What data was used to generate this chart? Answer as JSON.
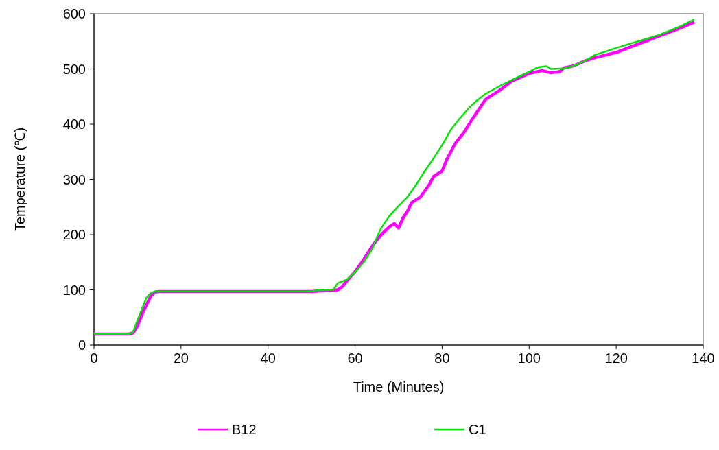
{
  "chart_data": {
    "type": "line",
    "xlabel": "Time (Minutes)",
    "ylabel": "Temperature (℃)",
    "xlim": [
      0,
      140
    ],
    "ylim": [
      0,
      600
    ],
    "xticks": [
      0,
      20,
      40,
      60,
      80,
      100,
      120,
      140
    ],
    "yticks": [
      0,
      100,
      200,
      300,
      400,
      500,
      600
    ],
    "grid": false,
    "legend": "bottom",
    "marker": "none",
    "line_style": "solid",
    "series": [
      {
        "name": "B12",
        "color": "#ff00ff",
        "x": [
          0,
          8,
          9,
          10,
          11,
          12,
          13,
          14,
          15,
          50,
          56,
          57,
          58,
          60,
          62,
          64,
          66,
          68,
          69,
          70,
          71,
          72,
          73,
          75,
          77,
          78,
          80,
          81,
          82,
          83,
          85,
          87,
          90,
          93,
          96,
          100,
          103,
          105,
          107,
          108,
          110,
          113,
          115,
          120,
          125,
          130,
          135,
          138
        ],
        "values": [
          20,
          20,
          22,
          35,
          55,
          72,
          88,
          96,
          97,
          97,
          100,
          105,
          115,
          133,
          155,
          180,
          200,
          215,
          220,
          212,
          230,
          242,
          258,
          268,
          290,
          305,
          315,
          335,
          350,
          365,
          385,
          410,
          445,
          460,
          478,
          492,
          497,
          493,
          495,
          502,
          505,
          515,
          520,
          530,
          545,
          560,
          575,
          585
        ]
      },
      {
        "name": "C1",
        "color": "#00e600",
        "x": [
          0,
          8,
          9,
          10,
          11,
          12,
          13,
          14,
          50,
          51,
          55,
          56,
          58,
          60,
          62,
          64,
          65,
          66,
          68,
          70,
          72,
          74,
          76,
          78,
          80,
          82,
          84,
          86,
          88,
          90,
          93,
          96,
          100,
          102,
          104,
          105,
          108,
          110,
          113,
          115,
          120,
          125,
          130,
          135,
          138
        ],
        "values": [
          20,
          20,
          24,
          45,
          65,
          85,
          94,
          97,
          97,
          99,
          100,
          112,
          118,
          132,
          150,
          175,
          195,
          212,
          235,
          252,
          268,
          290,
          315,
          338,
          362,
          390,
          410,
          428,
          443,
          455,
          468,
          480,
          495,
          503,
          505,
          500,
          501,
          505,
          515,
          525,
          538,
          550,
          562,
          578,
          590
        ]
      }
    ]
  }
}
